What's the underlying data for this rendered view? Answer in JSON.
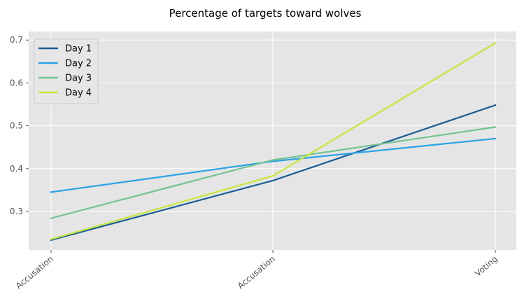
{
  "chart_data": {
    "type": "line",
    "title": "Percentage of targets toward wolves",
    "xlabel": "",
    "ylabel": "",
    "categories": [
      "Accusation",
      "Accusation",
      "Voting"
    ],
    "ylim": [
      0.21,
      0.72
    ],
    "yticks": [
      0.3,
      0.4,
      0.5,
      0.6,
      0.7
    ],
    "ytick_labels": [
      "0.3",
      "0.4",
      "0.5",
      "0.6",
      "0.7"
    ],
    "grid": true,
    "legend_position": "top-left",
    "series": [
      {
        "name": "Day 1",
        "color": "#1a5e96",
        "values": [
          0.233,
          0.372,
          0.548
        ]
      },
      {
        "name": "Day 2",
        "color": "#2ca3e5",
        "values": [
          0.345,
          0.417,
          0.47
        ]
      },
      {
        "name": "Day 3",
        "color": "#74c492",
        "values": [
          0.284,
          0.42,
          0.497
        ]
      },
      {
        "name": "Day 4",
        "color": "#c8e63b",
        "values": [
          0.235,
          0.383,
          0.693
        ]
      }
    ]
  }
}
